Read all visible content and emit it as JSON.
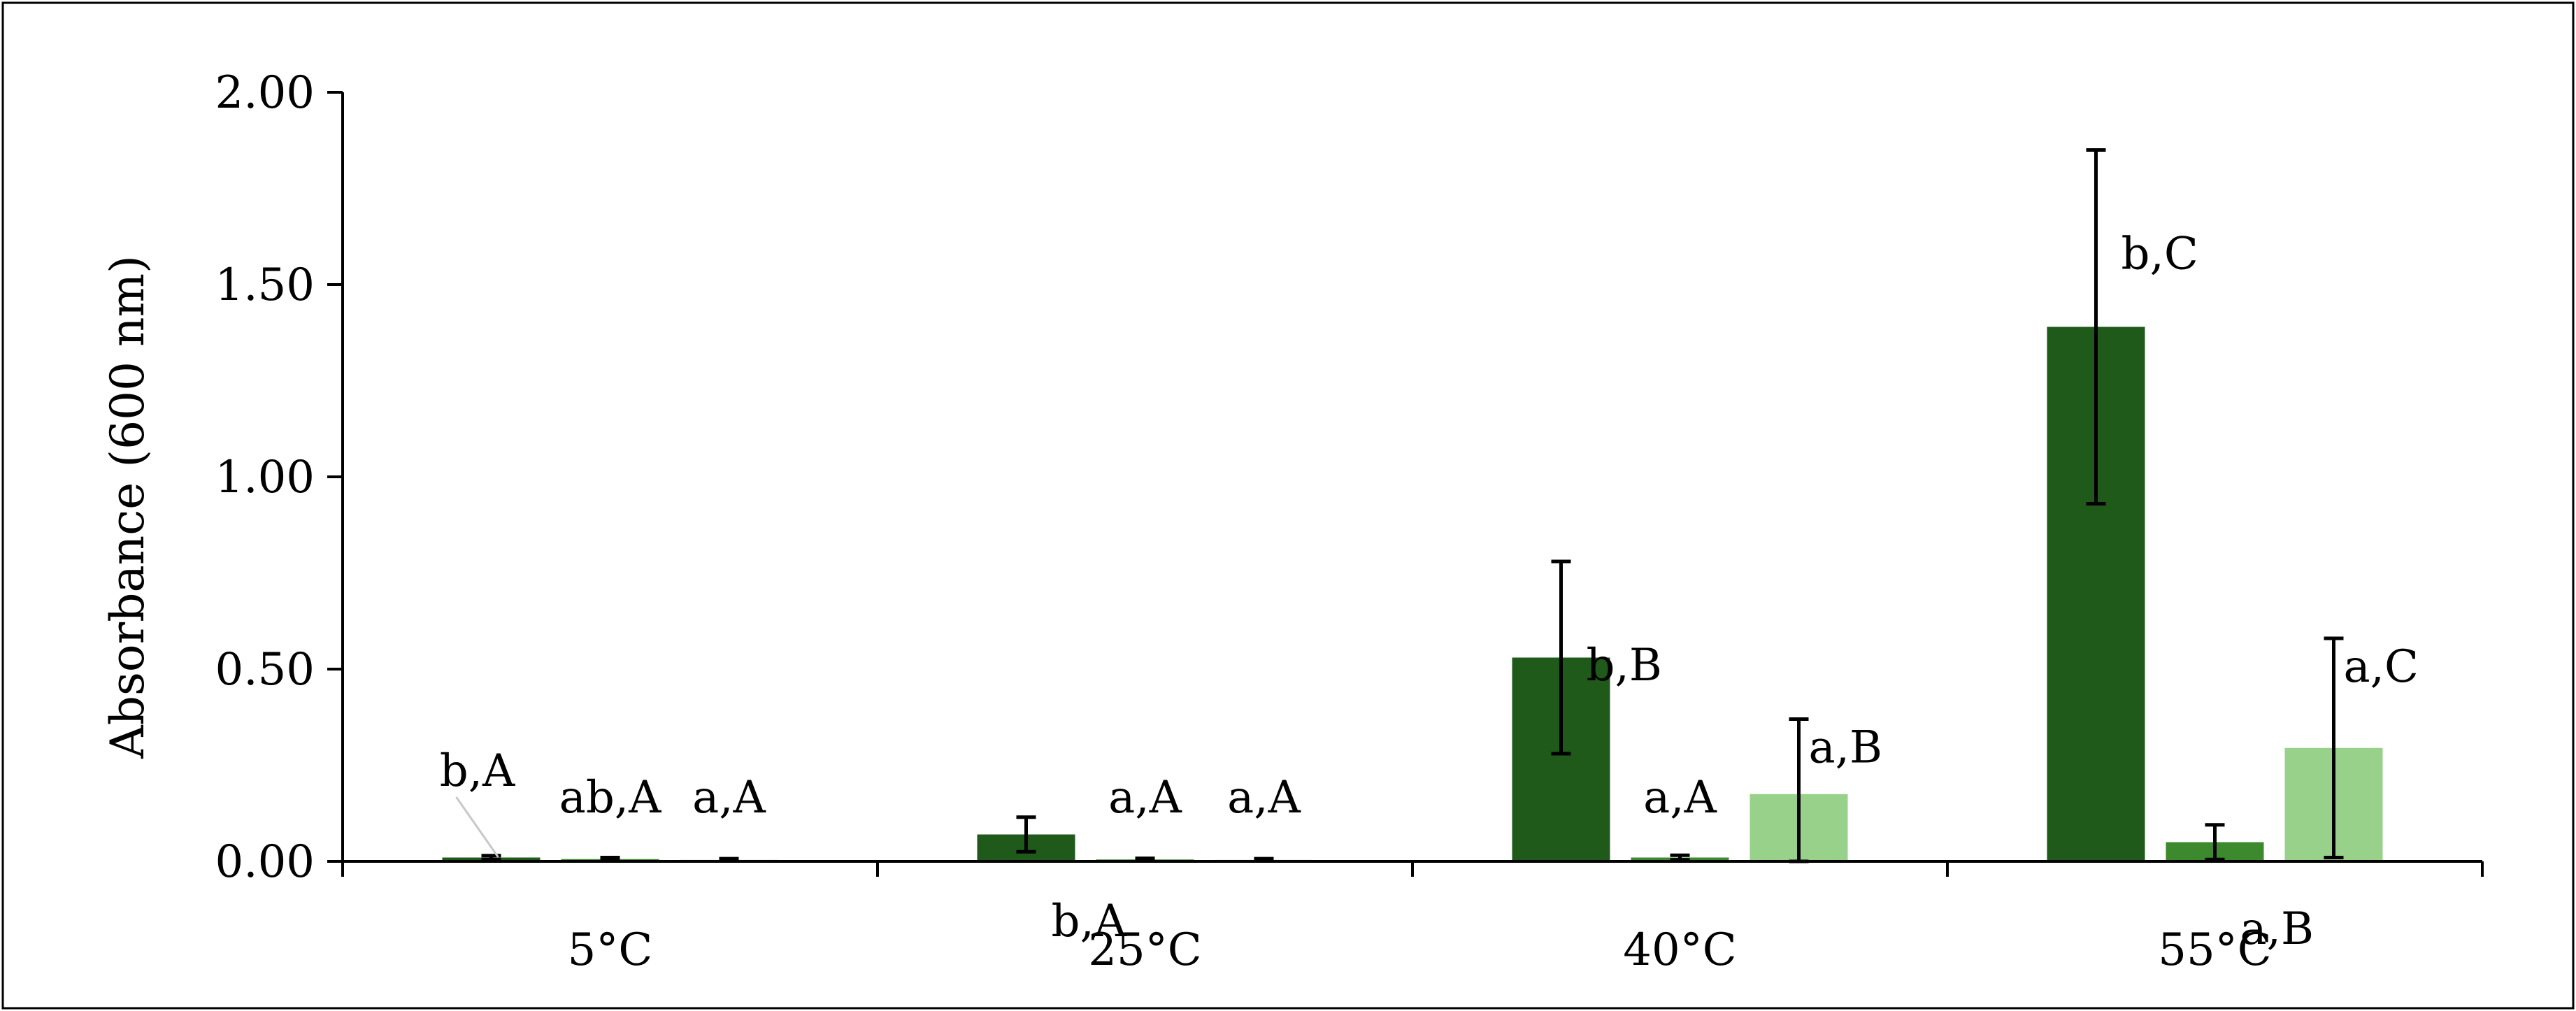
{
  "chart_data": {
    "type": "bar",
    "title": "",
    "xlabel": "",
    "ylabel": "Absorbance (600 nm)",
    "ylim": [
      0,
      2.0
    ],
    "yticks": [
      "0.00",
      "0.50",
      "1.00",
      "1.50",
      "2.00"
    ],
    "categories": [
      "5°C",
      "25°C",
      "40°C",
      "55°C"
    ],
    "grid": false,
    "legend": "none",
    "series": [
      {
        "color": "#1f5a1a",
        "values": [
          0.01,
          0.07,
          0.53,
          1.39
        ],
        "errors": [
          0.005,
          0.045,
          0.25,
          0.46
        ],
        "labels": [
          "b,A",
          "b,A",
          "b,B",
          "b,C"
        ]
      },
      {
        "color": "#3d8a2e",
        "values": [
          0.006,
          0.005,
          0.01,
          0.05
        ],
        "errors": [
          0.004,
          0.003,
          0.006,
          0.045
        ],
        "labels": [
          "ab,A",
          "a,A",
          "a,A",
          "a,B"
        ]
      },
      {
        "color": "#98d18a",
        "values": [
          0.004,
          0.004,
          0.175,
          0.295
        ],
        "errors": [
          0.003,
          0.003,
          0.195,
          0.285
        ],
        "labels": [
          "a,A",
          "a,A",
          "a,B",
          "a,C"
        ]
      }
    ]
  }
}
